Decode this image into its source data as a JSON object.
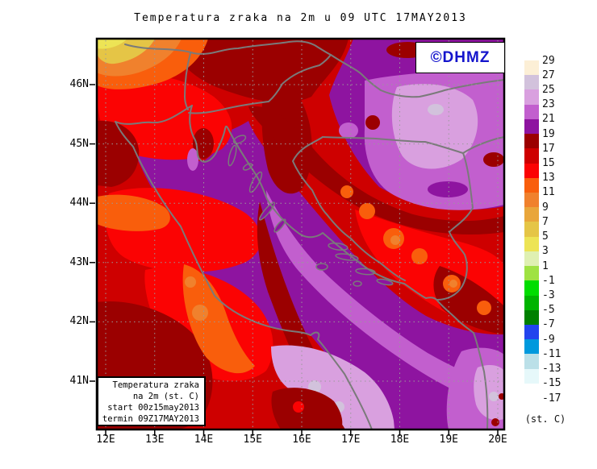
{
  "title": "Temperatura zraka na 2m u 09 UTC 17MAY2013",
  "watermark": {
    "text": "©DHMZ",
    "color": "#1414CC"
  },
  "info_box": {
    "lines": [
      "Temperatura zraka",
      "na 2m (st. C)",
      "start 00z15may2013",
      "termin 09Z17MAY2013"
    ]
  },
  "axes": {
    "lat_labels": [
      "46N",
      "45N",
      "44N",
      "43N",
      "42N",
      "41N"
    ],
    "lon_labels": [
      "12E",
      "13E",
      "14E",
      "15E",
      "16E",
      "17E",
      "18E",
      "19E",
      "20E"
    ]
  },
  "colorbar": {
    "unit_label": "(st. C)",
    "tick_labels": [
      "29",
      "27",
      "25",
      "23",
      "21",
      "19",
      "17",
      "15",
      "13",
      "11",
      "9",
      "7",
      "5",
      "3",
      "1",
      "-1",
      "-3",
      "-5",
      "-7",
      "-9",
      "-11",
      "-13",
      "-15",
      "-17"
    ],
    "swatch_colors": [
      "#FCEFD6",
      "#D2C2DC",
      "#D9A0DF",
      "#C25FCE",
      "#8E14A0",
      "#9B0000",
      "#CE0000",
      "#FB0303",
      "#F95E0C",
      "#F0812D",
      "#E9A63B",
      "#E5C546",
      "#EDE455",
      "#DFF0B2",
      "#9FE242",
      "#00DD00",
      "#00B400",
      "#008000",
      "#2244EE",
      "#0099DD",
      "#BBE0E8",
      "#E6F8FA",
      "#FFFFFF"
    ]
  },
  "map_palette": {
    "purple_19_21": "#8E14A0",
    "orchid_21_23": "#C25FCE",
    "plum_23_25": "#D9A0DF",
    "mauve_25_27": "#D2C2DC",
    "maroon_17_19": "#9B0000",
    "red_15_17": "#CE0000",
    "bright_red_13_15": "#FB0303",
    "orange_red_11_13": "#F95E0C",
    "orange_9_11": "#F0812D",
    "light_orange_7_9": "#E9A63B",
    "gold_5_7": "#E5C546",
    "yellow_3_5": "#EDE455",
    "border_gray": "#7A7A7A"
  }
}
